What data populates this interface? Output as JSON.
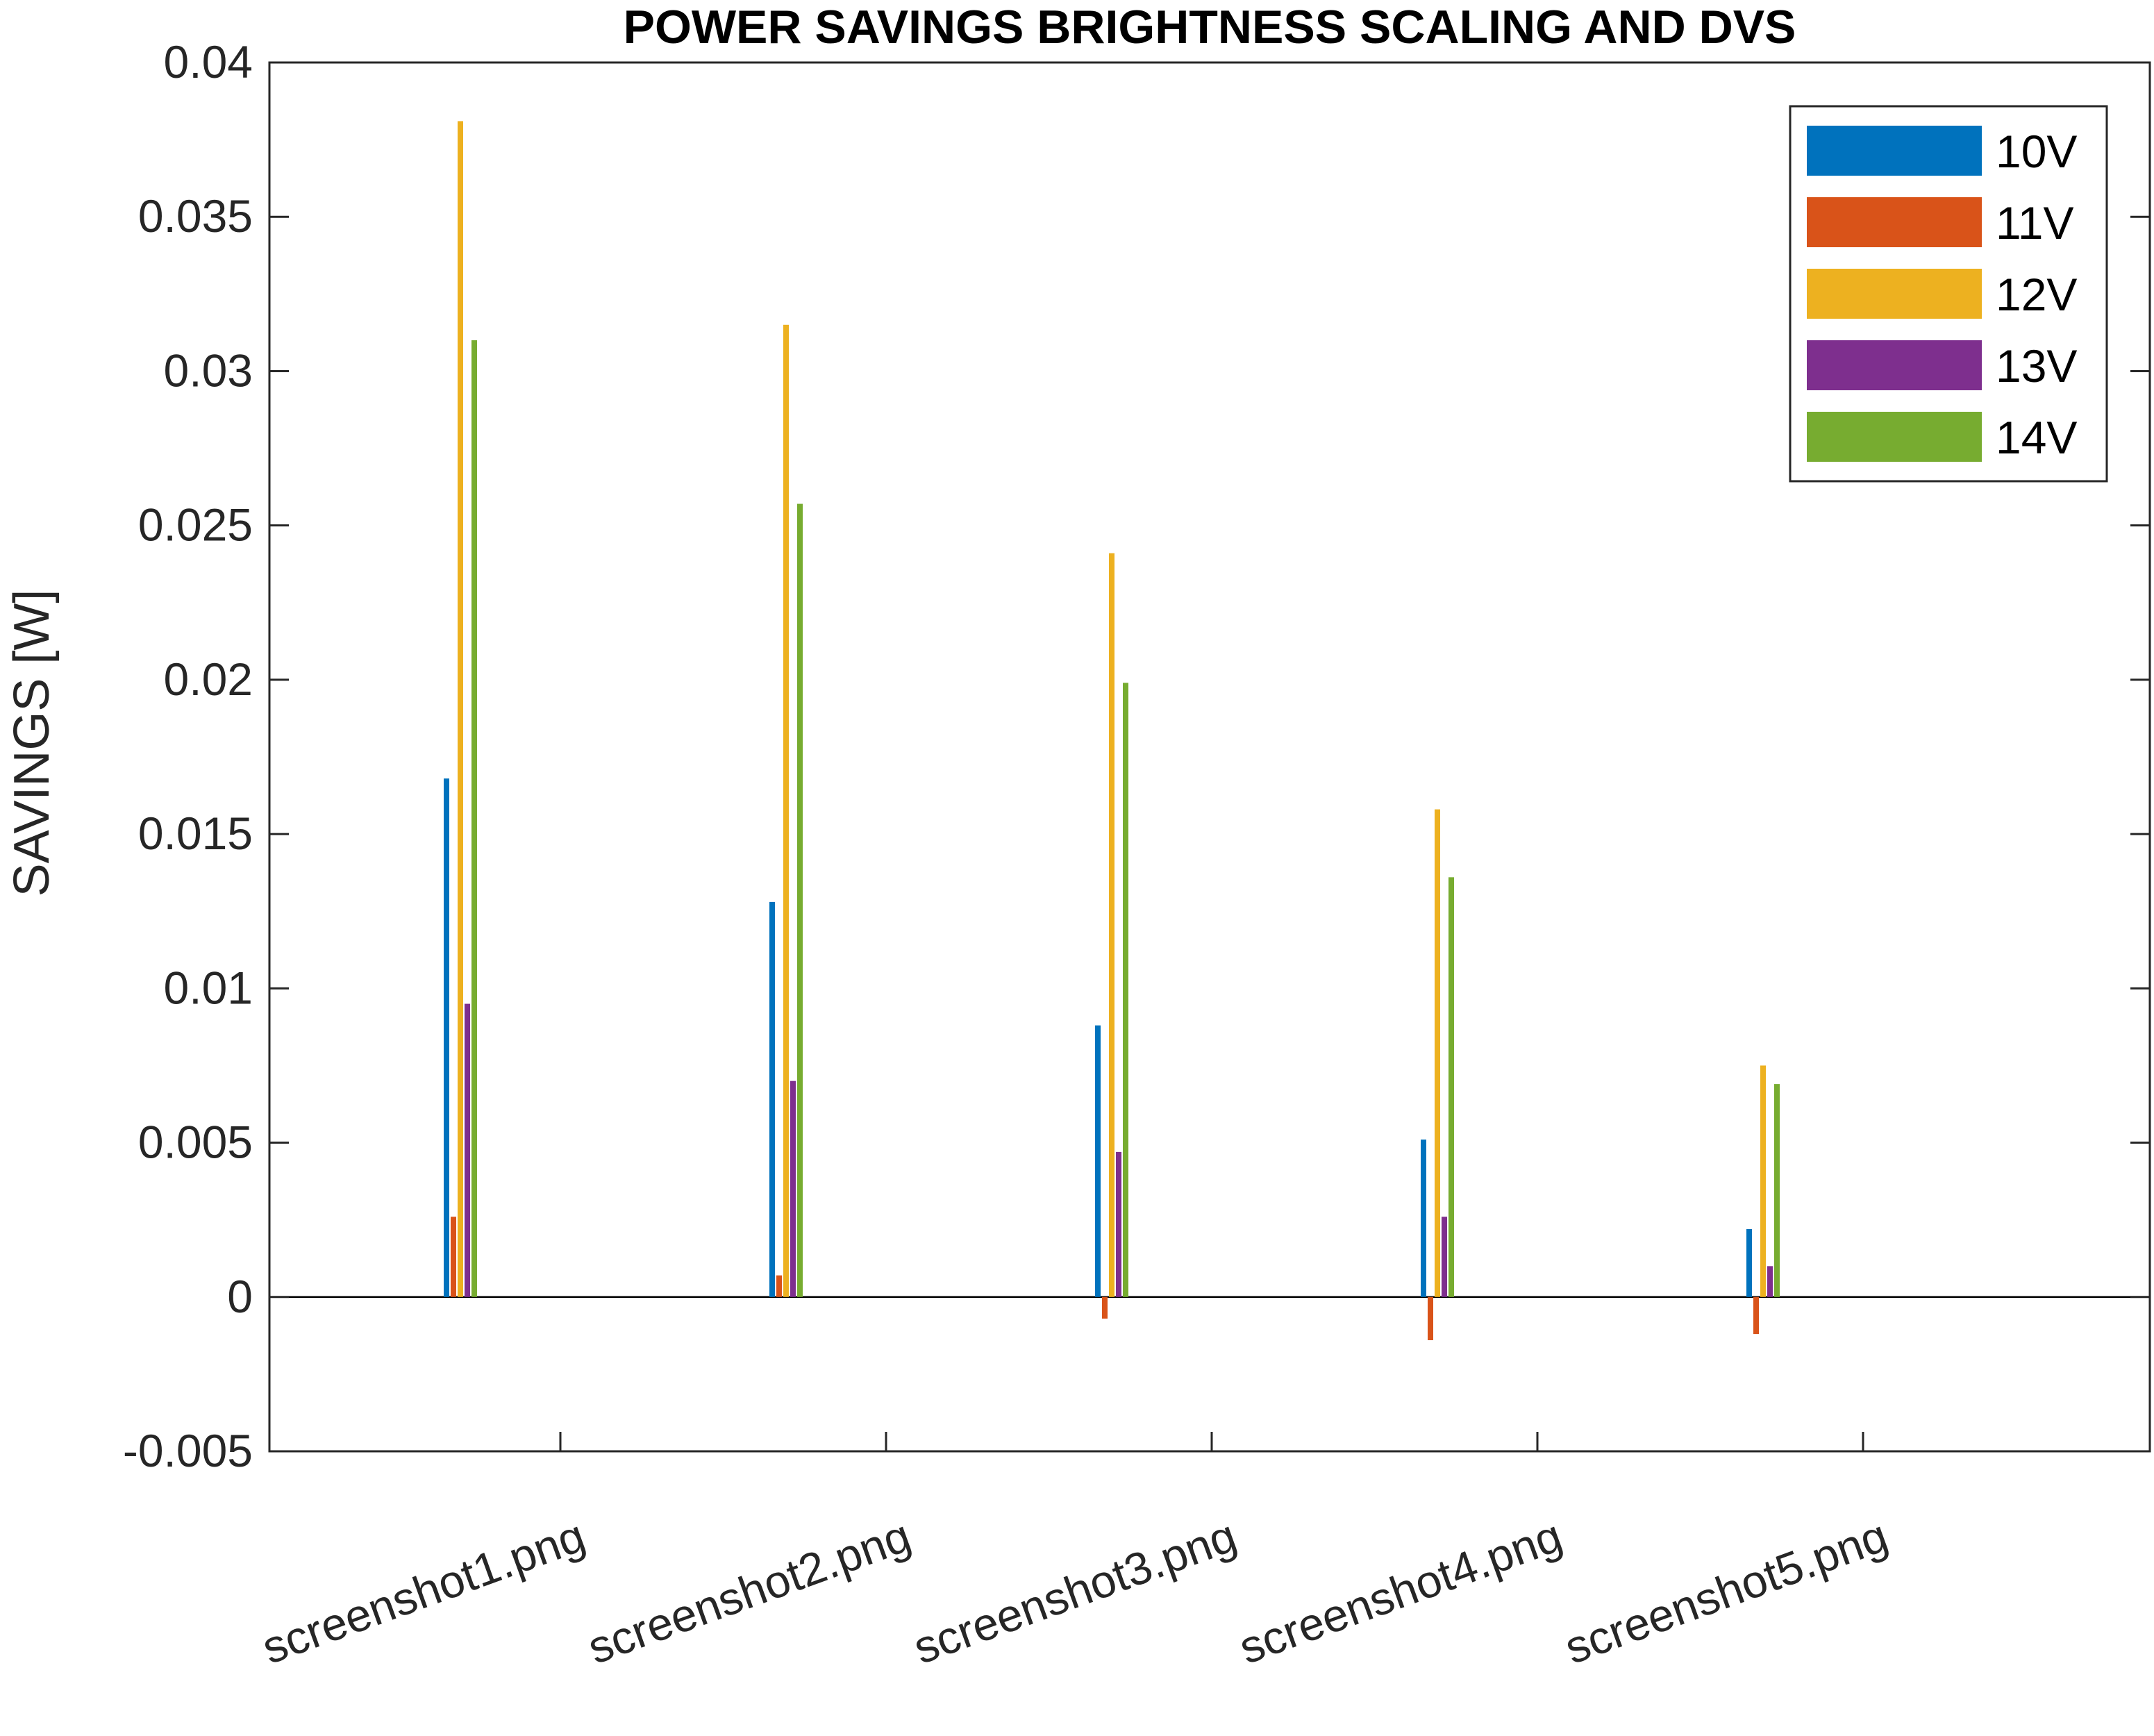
{
  "chart_data": {
    "type": "bar",
    "title": "POWER SAVINGS BRIGHTNESS SCALING AND DVS",
    "xlabel": "",
    "ylabel": "SAVINGS  [W]",
    "ylim": [
      -0.005,
      0.04
    ],
    "yticks": [
      "-0.005",
      "0",
      "0.005",
      "0.01",
      "0.015",
      "0.02",
      "0.025",
      "0.03",
      "0.035",
      "0.04"
    ],
    "yticks_values": [
      -0.005,
      0,
      0.005,
      0.01,
      0.015,
      0.02,
      0.025,
      0.03,
      0.035,
      0.04
    ],
    "categories": [
      "screenshot1.png",
      "screenshot2.png",
      "screenshot3.png",
      "screenshot4.png",
      "screenshot5.png"
    ],
    "series": [
      {
        "name": "10V",
        "color": "#0072BD",
        "values": [
          0.0168,
          0.0128,
          0.0088,
          0.0051,
          0.0022
        ]
      },
      {
        "name": "11V",
        "color": "#D95319",
        "values": [
          0.0026,
          0.0007,
          -0.0007,
          -0.0014,
          -0.0012
        ]
      },
      {
        "name": "12V",
        "color": "#EDB120",
        "values": [
          0.0381,
          0.0315,
          0.0241,
          0.0158,
          0.0075
        ]
      },
      {
        "name": "13V",
        "color": "#7E2F8E",
        "values": [
          0.0095,
          0.007,
          0.0047,
          0.0026,
          0.001
        ]
      },
      {
        "name": "14V",
        "color": "#77AC30",
        "values": [
          0.031,
          0.0257,
          0.0199,
          0.0136,
          0.0069
        ]
      }
    ],
    "grid": false,
    "legend_position": "top-right",
    "category_label_rotation": -20
  }
}
